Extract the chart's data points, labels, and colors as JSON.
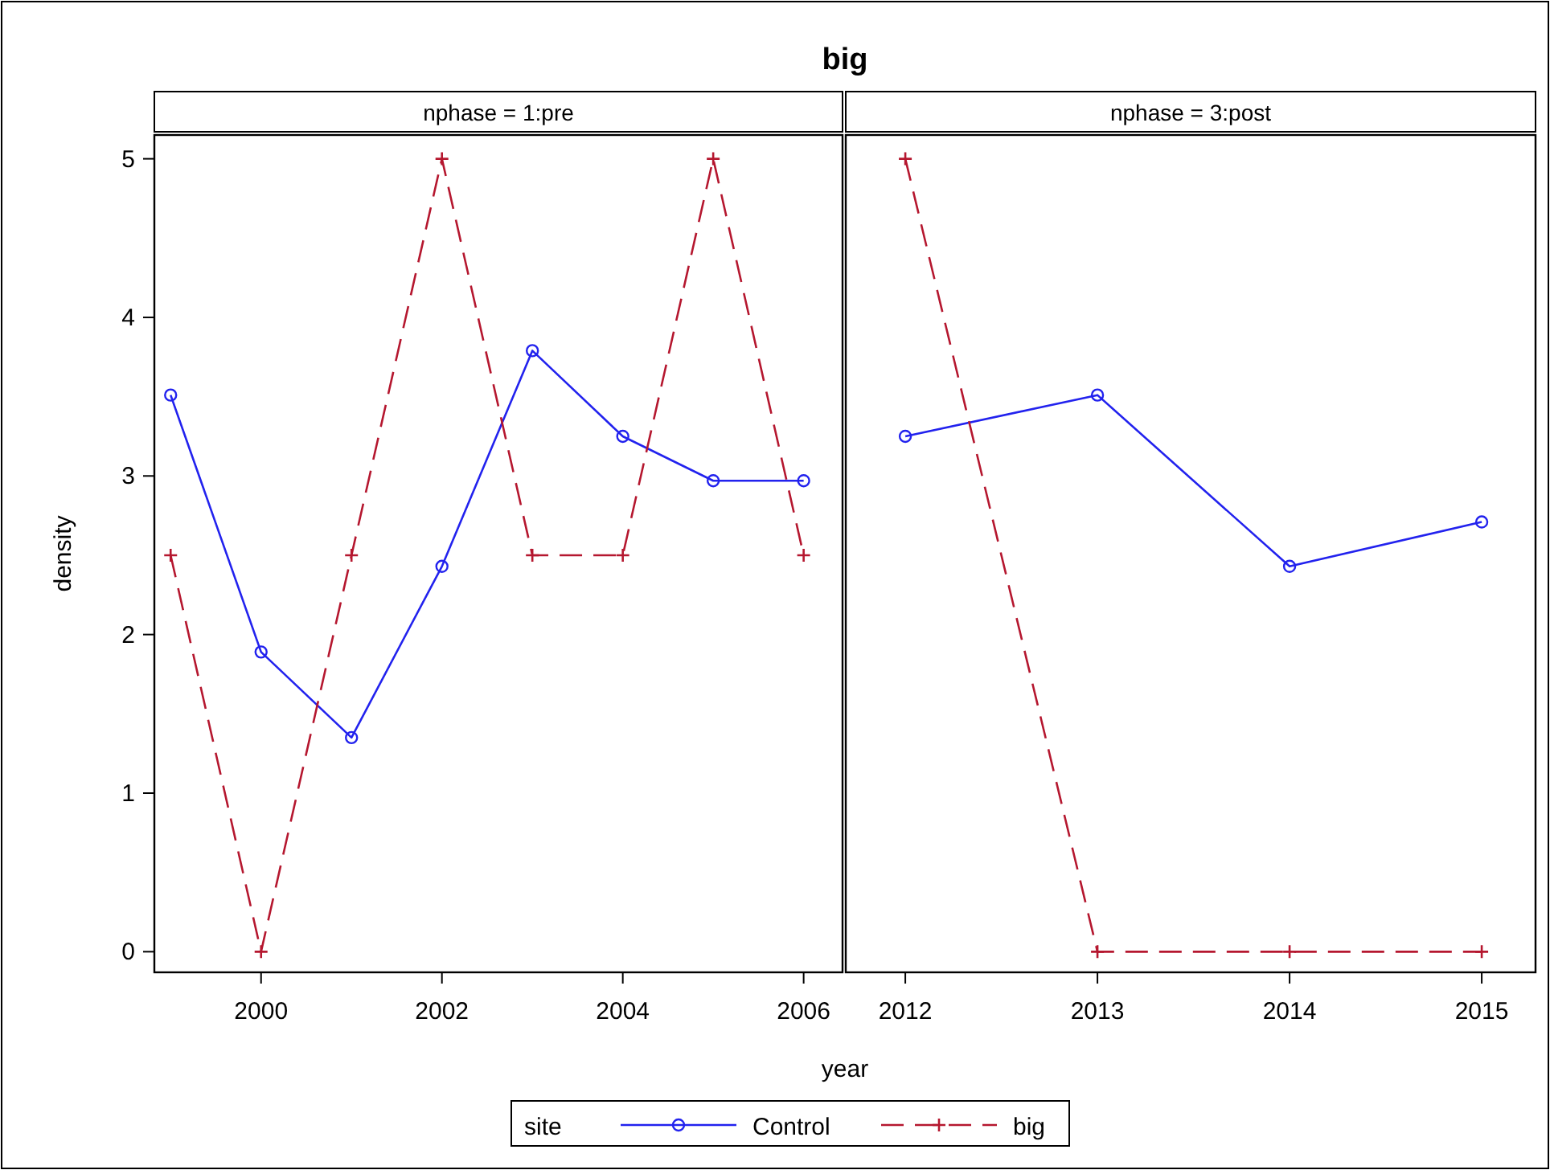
{
  "chart_data": [
    {
      "type": "line",
      "title": "big",
      "subtitle": "nphase = 1:pre",
      "xlabel": "year",
      "ylabel": "density",
      "legend": "bottom",
      "legend_title": "site",
      "x": [
        1999,
        2000,
        2001,
        2002,
        2003,
        2004,
        2005,
        2006
      ],
      "xlim": [
        1998.82,
        2006.43
      ],
      "xticks": [
        2000,
        2002,
        2004,
        2006
      ],
      "ylim": [
        -0.13,
        5.15
      ],
      "yticks": [
        0,
        1,
        2,
        3,
        4,
        5
      ],
      "series": [
        {
          "name": "Control",
          "color": "#2222ee",
          "marker": "circle",
          "line_style": "solid",
          "values": [
            3.51,
            1.89,
            1.35,
            2.43,
            3.79,
            3.25,
            2.97,
            2.97
          ]
        },
        {
          "name": "big",
          "color": "#b5172f",
          "marker": "cross",
          "line_style": "dashed",
          "values": [
            2.5,
            0,
            2.5,
            5,
            2.5,
            2.5,
            5,
            2.5
          ]
        }
      ]
    },
    {
      "type": "line",
      "subtitle": "nphase = 3:post",
      "tick_labels": "x",
      "x": [
        2012,
        2013,
        2014,
        2015
      ],
      "xlim": [
        2011.69,
        2015.28
      ],
      "xticks": [
        2012,
        2013,
        2014,
        2015
      ],
      "ylim": [
        -0.13,
        5.15
      ],
      "series": [
        {
          "color": "#2222ee",
          "marker": "circle",
          "line_style": "solid",
          "values": [
            3.25,
            3.51,
            2.43,
            2.71
          ]
        },
        {
          "color": "#b5172f",
          "marker": "cross",
          "line_style": "dashed",
          "values": [
            5,
            0,
            0,
            0
          ]
        }
      ]
    }
  ]
}
